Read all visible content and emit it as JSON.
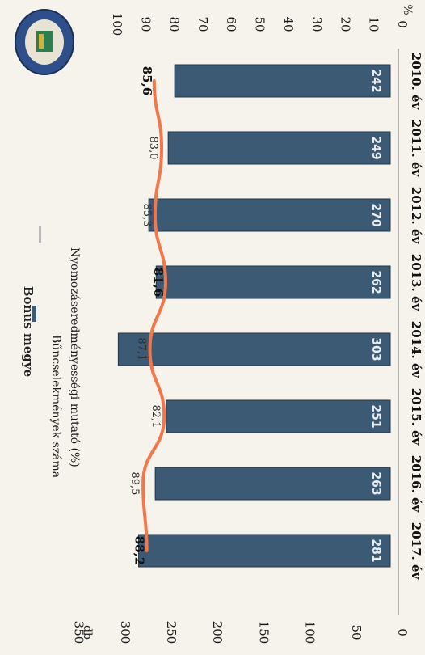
{
  "chart_data": {
    "type": "bar",
    "title": "Bonus megye",
    "categories": [
      "2010. év",
      "2011. év",
      "2012. év",
      "2013. év",
      "2014. év",
      "2015. év",
      "2016. év",
      "2017. év"
    ],
    "series": [
      {
        "name": "Bűncselekmények száma",
        "type": "bar",
        "axis": "left",
        "values": [
          242,
          249,
          270,
          262,
          303,
          251,
          263,
          281
        ],
        "labels": [
          "242",
          "249",
          "270",
          "262",
          "303",
          "251",
          "263",
          "281"
        ],
        "color": "#3c5a73"
      },
      {
        "name": "Nyomozáseredményességi mutató (%)",
        "type": "line",
        "axis": "right",
        "values": [
          85.6,
          83.0,
          85.3,
          81.6,
          87.1,
          82.1,
          89.5,
          88.2
        ],
        "labels": [
          "85,6",
          "83,0",
          "85,3",
          "81,6",
          "87,1",
          "82,1",
          "89,5",
          "88,2"
        ],
        "bold_labels": [
          true,
          false,
          false,
          true,
          false,
          false,
          false,
          true
        ],
        "color": "#f2774a"
      }
    ],
    "left_axis": {
      "unit": "db",
      "ticks": [
        0,
        50,
        100,
        150,
        200,
        250,
        300,
        350
      ],
      "tick_labels": [
        "0",
        "50",
        "100",
        "150",
        "200",
        "250",
        "300",
        "350"
      ],
      "range": [
        0,
        350
      ]
    },
    "right_axis": {
      "unit": "%",
      "ticks": [
        0,
        10,
        20,
        30,
        40,
        50,
        60,
        70,
        80,
        90,
        100
      ],
      "tick_labels": [
        "0",
        "10",
        "20",
        "30",
        "40",
        "50",
        "60",
        "70",
        "80",
        "90",
        "100"
      ],
      "range": [
        0,
        100
      ]
    },
    "legend_position": "top",
    "grid": false,
    "orientation": "rotated 90 degrees clockwise in image"
  }
}
